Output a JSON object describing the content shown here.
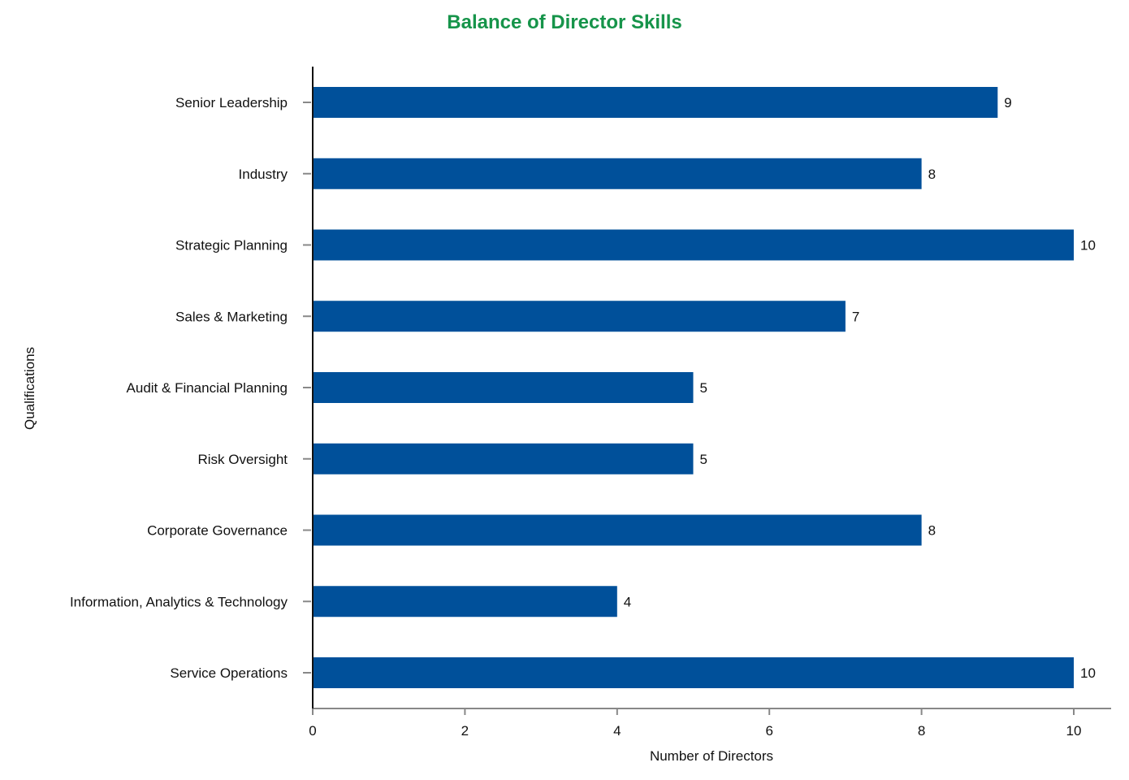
{
  "chart_data": {
    "type": "bar",
    "orientation": "horizontal",
    "title": "Balance of Director Skills",
    "xlabel": "Number of Directors",
    "ylabel": "Qualifications",
    "categories": [
      "Senior Leadership",
      "Industry",
      "Strategic Planning",
      "Sales & Marketing",
      "Audit & Financial Planning",
      "Risk Oversight",
      "Corporate Governance",
      "Information, Analytics & Technology",
      "Service Operations"
    ],
    "values": [
      9,
      8,
      10,
      7,
      5,
      5,
      8,
      4,
      10
    ],
    "value_labels": [
      "9",
      "8",
      "10",
      "7",
      "5",
      "5",
      "8",
      "4",
      "10"
    ],
    "xlim": [
      0,
      10.5
    ],
    "xticks": [
      0,
      2,
      4,
      6,
      8,
      10
    ],
    "xtick_labels": [
      "0",
      "2",
      "4",
      "6",
      "8",
      "10"
    ],
    "grid": false,
    "colors": {
      "bar": "#00509a",
      "title": "#16944a",
      "axis": "#888888",
      "y_axis_line": "#111111"
    }
  }
}
